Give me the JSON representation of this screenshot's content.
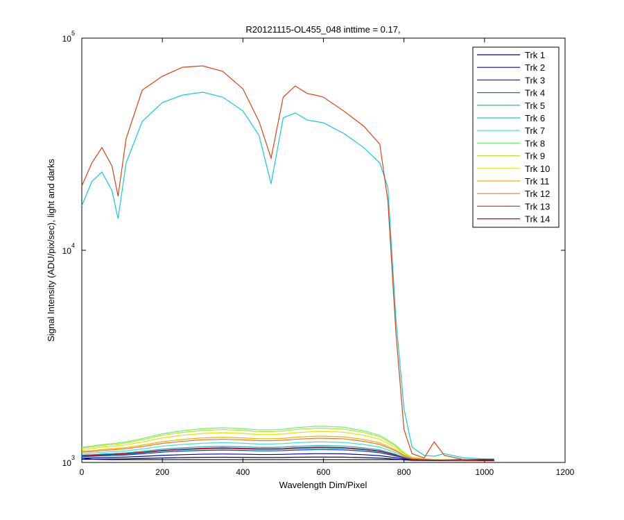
{
  "chart_data": {
    "type": "line",
    "title": "R20121115-OL455_048 inttime = 0.17,",
    "xlabel": "Wavelength Dim/Pixel",
    "ylabel": "Signal Intensity (ADU/pix/sec), light and darks",
    "xlim": [
      0,
      1200
    ],
    "xticks": [
      0,
      200,
      400,
      600,
      800,
      1000,
      1200
    ],
    "ylim": [
      1000,
      100000
    ],
    "yscale": "log",
    "yticks": [
      {
        "value": 1000,
        "label": "10^3"
      },
      {
        "value": 10000,
        "label": "10^4"
      },
      {
        "value": 100000,
        "label": "10^5"
      }
    ],
    "legend": "upper right",
    "x": [
      0,
      25,
      50,
      75,
      90,
      110,
      150,
      200,
      250,
      300,
      350,
      400,
      440,
      470,
      500,
      530,
      560,
      580,
      600,
      650,
      700,
      740,
      760,
      780,
      800,
      820,
      850,
      875,
      900,
      950,
      1000,
      1024
    ],
    "series": [
      {
        "color": "#000000",
        "values": [
          1050,
          1035,
          1032,
          1031,
          1031,
          1031,
          1031,
          1031,
          1031,
          1031,
          1031,
          1031,
          1031,
          1031,
          1031,
          1031,
          1031,
          1031,
          1031,
          1031,
          1031,
          1031,
          1031,
          1031,
          1031,
          1031,
          1031,
          1031,
          1031,
          1031,
          1031,
          1031
        ]
      },
      {
        "name": "Trk 1",
        "color": "#000080",
        "values": [
          1034,
          1035,
          1037,
          1038,
          1039,
          1040,
          1044,
          1050,
          1054,
          1057,
          1058,
          1057,
          1055,
          1055,
          1056,
          1058,
          1059,
          1060,
          1060,
          1059,
          1054,
          1048,
          1042,
          1036,
          1028,
          1023,
          1022,
          1021,
          1021,
          1020,
          1020,
          1020
        ]
      },
      {
        "name": "Trk 2",
        "color": "#0000c0",
        "values": [
          1048,
          1050,
          1054,
          1056,
          1058,
          1060,
          1068,
          1080,
          1088,
          1094,
          1096,
          1094,
          1090,
          1090,
          1092,
          1096,
          1098,
          1100,
          1100,
          1098,
          1088,
          1076,
          1064,
          1052,
          1036,
          1026,
          1024,
          1022,
          1022,
          1021,
          1020,
          1020
        ]
      },
      {
        "name": "Trk 3",
        "color": "#0040d0",
        "values": [
          1066,
          1069,
          1075,
          1079,
          1081,
          1085,
          1098,
          1118,
          1131,
          1140,
          1144,
          1140,
          1134,
          1134,
          1137,
          1144,
          1147,
          1150,
          1150,
          1146,
          1131,
          1111,
          1092,
          1072,
          1046,
          1030,
          1027,
          1024,
          1023,
          1021,
          1020,
          1020
        ]
      },
      {
        "name": "Trk 4",
        "color": "#0080b0",
        "values": [
          1073,
          1077,
          1083,
          1088,
          1091,
          1095,
          1110,
          1133,
          1148,
          1158,
          1163,
          1158,
          1152,
          1152,
          1155,
          1163,
          1167,
          1170,
          1170,
          1166,
          1148,
          1125,
          1103,
          1080,
          1050,
          1032,
          1028,
          1025,
          1023,
          1022,
          1020,
          1020
        ]
      },
      {
        "name": "Trk 5",
        "color": "#00b0d8",
        "values": [
          1083,
          1088,
          1096,
          1101,
          1105,
          1110,
          1128,
          1155,
          1173,
          1186,
          1191,
          1186,
          1178,
          1178,
          1182,
          1191,
          1196,
          1200,
          1200,
          1195,
          1173,
          1146,
          1119,
          1092,
          1056,
          1034,
          1029,
          1025,
          1024,
          1022,
          1020,
          1020
        ]
      },
      {
        "name": "Trk 6",
        "color": "#10c8e8",
        "values": [
          16200,
          21100,
          23400,
          19100,
          14100,
          25800,
          40500,
          49700,
          53900,
          55600,
          52700,
          45400,
          34800,
          20600,
          42100,
          44400,
          41100,
          40500,
          39900,
          35600,
          30500,
          25800,
          19800,
          4750,
          1790,
          1180,
          1080,
          1070,
          1100,
          1050,
          1040,
          1040
        ]
      },
      {
        "name": "Trk 7",
        "color": "#40e0d0",
        "values": [
          1101,
          1107,
          1117,
          1124,
          1128,
          1135,
          1158,
          1193,
          1216,
          1232,
          1239,
          1232,
          1222,
          1222,
          1227,
          1239,
          1245,
          1250,
          1250,
          1243,
          1216,
          1181,
          1147,
          1112,
          1066,
          1038,
          1032,
          1027,
          1025,
          1022,
          1020,
          1020
        ]
      },
      {
        "name": "Trk 8",
        "color": "#70f070",
        "values": [
          1181,
          1195,
          1213,
          1227,
          1236,
          1250,
          1296,
          1365,
          1411,
          1443,
          1457,
          1443,
          1425,
          1425,
          1434,
          1457,
          1471,
          1480,
          1480,
          1466,
          1411,
          1342,
          1273,
          1204,
          1112,
          1057,
          1043,
          1034,
          1029,
          1025,
          1020,
          1020
        ]
      },
      {
        "name": "Trk 9",
        "color": "#b0e830",
        "values": [
          1171,
          1183,
          1201,
          1214,
          1222,
          1235,
          1278,
          1343,
          1386,
          1416,
          1429,
          1416,
          1398,
          1398,
          1407,
          1429,
          1441,
          1450,
          1450,
          1437,
          1386,
          1321,
          1257,
          1192,
          1106,
          1054,
          1042,
          1033,
          1029,
          1024,
          1020,
          1020
        ]
      },
      {
        "name": "Trk 10",
        "color": "#e8e000",
        "values": [
          1153,
          1164,
          1180,
          1191,
          1199,
          1210,
          1248,
          1305,
          1343,
          1370,
          1381,
          1370,
          1354,
          1354,
          1362,
          1381,
          1392,
          1400,
          1400,
          1389,
          1343,
          1286,
          1229,
          1172,
          1096,
          1050,
          1039,
          1031,
          1028,
          1024,
          1020,
          1020
        ]
      },
      {
        "name": "Trk 11",
        "color": "#f0b000",
        "values": [
          1129,
          1138,
          1150,
          1160,
          1166,
          1175,
          1206,
          1253,
          1284,
          1305,
          1315,
          1305,
          1293,
          1293,
          1299,
          1315,
          1324,
          1330,
          1330,
          1321,
          1284,
          1237,
          1191,
          1144,
          1082,
          1045,
          1036,
          1029,
          1026,
          1023,
          1020,
          1020
        ]
      },
      {
        "name": "Trk 12",
        "color": "#f07820",
        "values": [
          1118,
          1126,
          1138,
          1146,
          1152,
          1160,
          1188,
          1230,
          1258,
          1278,
          1286,
          1278,
          1266,
          1266,
          1272,
          1286,
          1294,
          1300,
          1300,
          1292,
          1258,
          1216,
          1174,
          1132,
          1076,
          1042,
          1034,
          1028,
          1026,
          1023,
          1020,
          1020
        ]
      },
      {
        "name": "Trk 13",
        "color": "#e04010",
        "values": [
          20100,
          25800,
          30500,
          24900,
          18000,
          33600,
          56900,
          66100,
          72900,
          74000,
          69700,
          57700,
          40500,
          27200,
          52700,
          59500,
          54800,
          53900,
          52700,
          45400,
          38500,
          31600,
          17100,
          4080,
          1430,
          1100,
          1050,
          1250,
          1080,
          1030,
          1020,
          1020
        ]
      },
      {
        "name": "Trk 14",
        "color": "#d00000",
        "values": [
          1076,
          1081,
          1087,
          1092,
          1095,
          1100,
          1116,
          1140,
          1156,
          1167,
          1172,
          1167,
          1161,
          1161,
          1164,
          1172,
          1177,
          1180,
          1180,
          1175,
          1156,
          1132,
          1108,
          1084,
          1052,
          1033,
          1028,
          1025,
          1023,
          1022,
          1020,
          1020
        ]
      }
    ]
  }
}
